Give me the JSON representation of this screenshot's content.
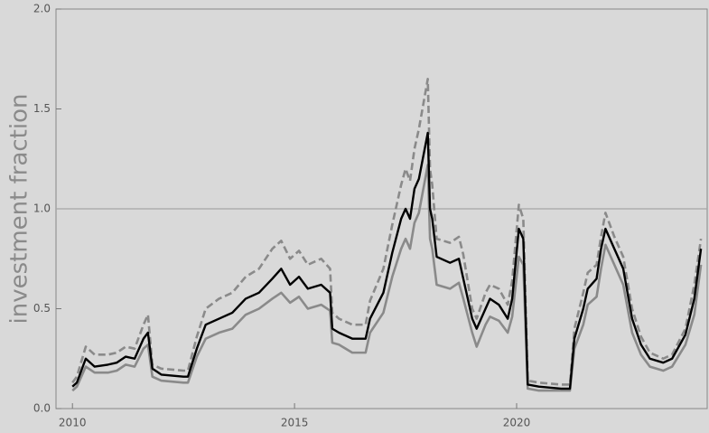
{
  "chart_data": {
    "type": "line",
    "y_label": "investment fraction",
    "x": [
      2010.0,
      2010.1,
      2010.3,
      2010.5,
      2010.8,
      2011.0,
      2011.2,
      2011.4,
      2011.6,
      2011.7,
      2011.8,
      2012.0,
      2012.5,
      2012.6,
      2012.8,
      2013.0,
      2013.3,
      2013.6,
      2013.9,
      2014.2,
      2014.5,
      2014.7,
      2014.9,
      2015.1,
      2015.3,
      2015.6,
      2015.8,
      2015.85,
      2016.0,
      2016.3,
      2016.6,
      2016.7,
      2017.0,
      2017.2,
      2017.4,
      2017.5,
      2017.6,
      2017.7,
      2017.8,
      2018.0,
      2018.05,
      2018.1,
      2018.2,
      2018.5,
      2018.7,
      2018.8,
      2019.0,
      2019.1,
      2019.3,
      2019.4,
      2019.6,
      2019.8,
      2019.9,
      2020.05,
      2020.15,
      2020.25,
      2020.5,
      2021.0,
      2021.2,
      2021.3,
      2021.5,
      2021.6,
      2021.8,
      2021.9,
      2022.0,
      2022.2,
      2022.4,
      2022.6,
      2022.8,
      2023.0,
      2023.3,
      2023.5,
      2023.8,
      2024.0,
      2024.15
    ],
    "series": [
      {
        "color": "#8a8a8a",
        "dashed": true,
        "values": [
          0.13,
          0.16,
          0.31,
          0.27,
          0.27,
          0.28,
          0.31,
          0.3,
          0.42,
          0.47,
          0.22,
          0.2,
          0.19,
          0.19,
          0.36,
          0.5,
          0.55,
          0.58,
          0.66,
          0.7,
          0.8,
          0.84,
          0.75,
          0.79,
          0.72,
          0.75,
          0.7,
          0.48,
          0.45,
          0.42,
          0.42,
          0.54,
          0.7,
          0.92,
          1.12,
          1.2,
          1.14,
          1.3,
          1.4,
          1.65,
          1.2,
          1.12,
          0.85,
          0.83,
          0.86,
          0.77,
          0.5,
          0.45,
          0.58,
          0.62,
          0.6,
          0.52,
          0.64,
          1.02,
          0.95,
          0.14,
          0.13,
          0.12,
          0.12,
          0.4,
          0.58,
          0.68,
          0.72,
          0.86,
          0.98,
          0.86,
          0.76,
          0.5,
          0.36,
          0.28,
          0.25,
          0.27,
          0.4,
          0.62,
          0.85
        ]
      },
      {
        "color": "#8a8a8a",
        "dashed": false,
        "values": [
          0.09,
          0.11,
          0.21,
          0.18,
          0.18,
          0.19,
          0.22,
          0.21,
          0.3,
          0.32,
          0.16,
          0.14,
          0.13,
          0.13,
          0.26,
          0.35,
          0.38,
          0.4,
          0.47,
          0.5,
          0.55,
          0.58,
          0.53,
          0.56,
          0.5,
          0.52,
          0.49,
          0.33,
          0.32,
          0.28,
          0.28,
          0.38,
          0.48,
          0.66,
          0.8,
          0.85,
          0.8,
          0.93,
          0.98,
          1.22,
          0.85,
          0.8,
          0.62,
          0.6,
          0.63,
          0.55,
          0.38,
          0.31,
          0.42,
          0.46,
          0.44,
          0.38,
          0.46,
          0.76,
          0.72,
          0.1,
          0.09,
          0.09,
          0.09,
          0.3,
          0.42,
          0.52,
          0.56,
          0.7,
          0.82,
          0.72,
          0.62,
          0.38,
          0.27,
          0.21,
          0.19,
          0.21,
          0.32,
          0.47,
          0.72
        ]
      },
      {
        "color": "#000000",
        "dashed": false,
        "values": [
          0.11,
          0.13,
          0.25,
          0.21,
          0.22,
          0.23,
          0.26,
          0.25,
          0.35,
          0.38,
          0.2,
          0.17,
          0.16,
          0.16,
          0.3,
          0.42,
          0.45,
          0.48,
          0.55,
          0.58,
          0.65,
          0.7,
          0.62,
          0.66,
          0.6,
          0.62,
          0.58,
          0.4,
          0.38,
          0.35,
          0.35,
          0.45,
          0.58,
          0.78,
          0.95,
          1.0,
          0.95,
          1.1,
          1.15,
          1.38,
          1.0,
          0.95,
          0.76,
          0.73,
          0.75,
          0.65,
          0.45,
          0.4,
          0.5,
          0.55,
          0.52,
          0.45,
          0.55,
          0.9,
          0.85,
          0.12,
          0.11,
          0.1,
          0.1,
          0.35,
          0.5,
          0.6,
          0.65,
          0.8,
          0.9,
          0.8,
          0.7,
          0.45,
          0.32,
          0.25,
          0.23,
          0.25,
          0.37,
          0.55,
          0.8
        ]
      }
    ],
    "xlim": [
      2009.63,
      2024.29
    ],
    "xticks": [
      2010,
      2015,
      2020
    ],
    "ylim": [
      0,
      2
    ],
    "yticks": [
      {
        "value": 0,
        "label": "0.0"
      },
      0.5,
      {
        "value": 1,
        "label": "1.0"
      },
      1.5,
      {
        "value": 2,
        "label": "2.0"
      }
    ],
    "hline": 1,
    "hline_color": "#a6a6a6"
  }
}
